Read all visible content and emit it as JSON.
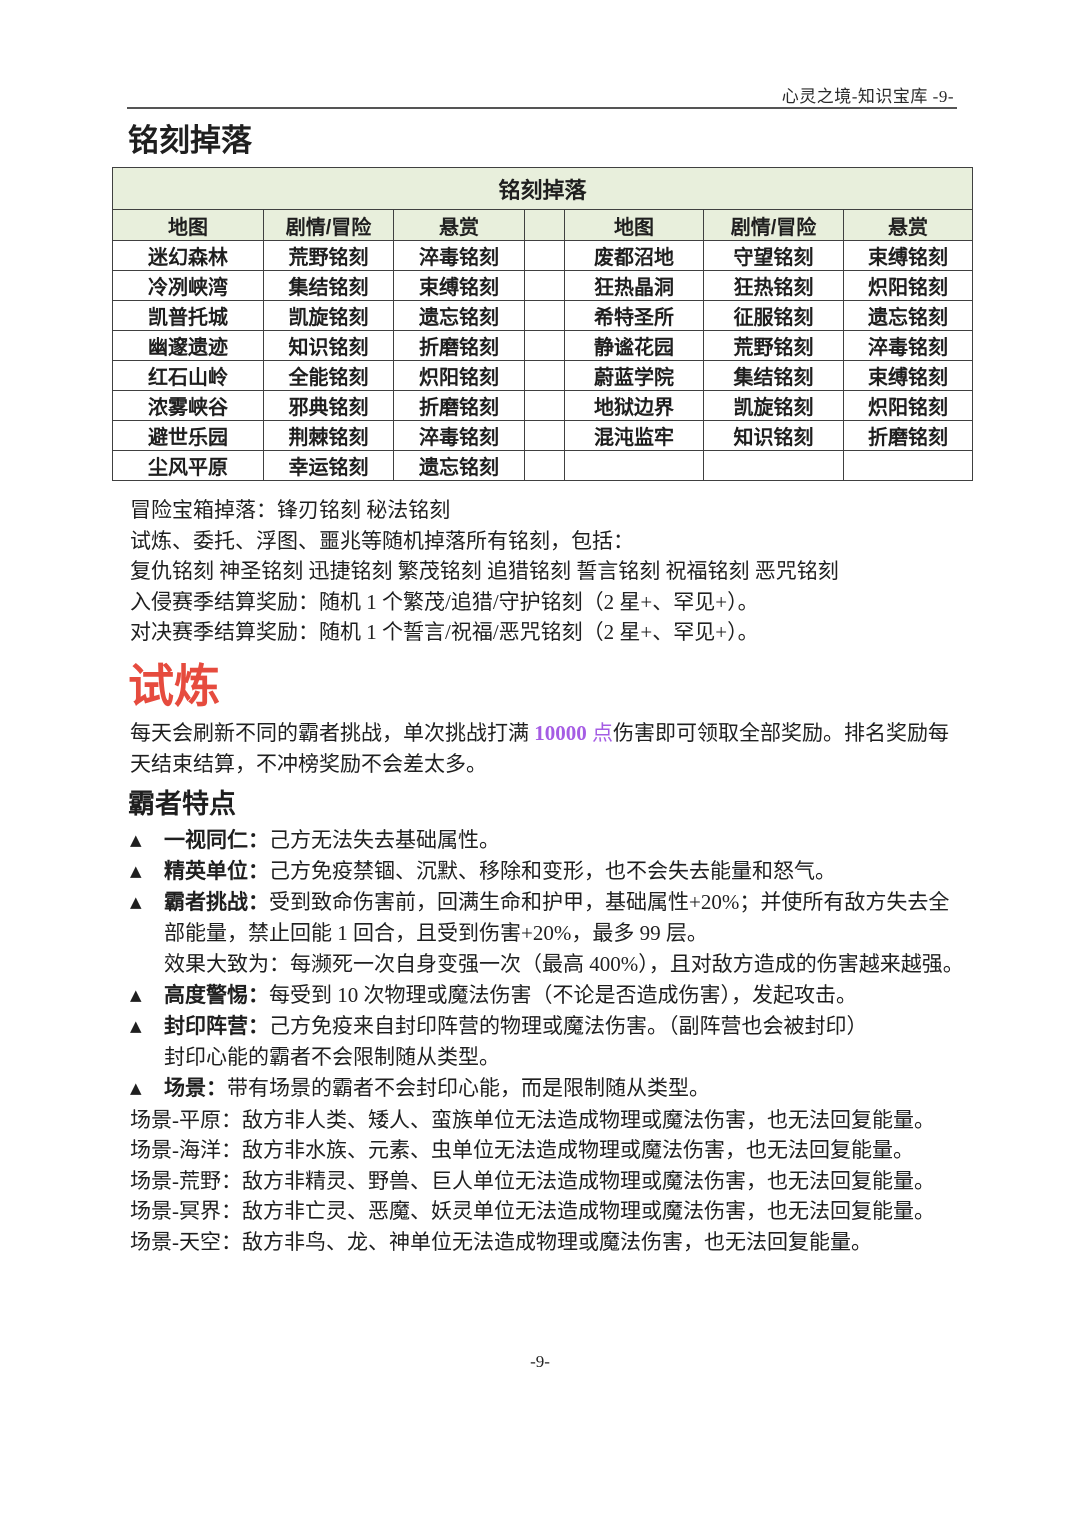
{
  "page": {
    "header_right": "心灵之境-知识宝库 -9-",
    "footer": "-9-"
  },
  "colors": {
    "accent_red": "#e64b3e",
    "highlight_purple": "#a55ce4",
    "table_header_bg": "#e8efdc",
    "table_border": "#404040"
  },
  "inscription_section": {
    "title": "铭刻掉落",
    "table": {
      "title": "铭刻掉落",
      "columns": [
        "地图",
        "剧情/冒险",
        "悬赏",
        "",
        "地图",
        "剧情/冒险",
        "悬赏"
      ],
      "rows": [
        [
          "迷幻森林",
          "荒野铭刻",
          "淬毒铭刻",
          "",
          "废都沼地",
          "守望铭刻",
          "束缚铭刻"
        ],
        [
          "冷冽峡湾",
          "集结铭刻",
          "束缚铭刻",
          "",
          "狂热晶洞",
          "狂热铭刻",
          "炽阳铭刻"
        ],
        [
          "凯普托城",
          "凯旋铭刻",
          "遗忘铭刻",
          "",
          "希特圣所",
          "征服铭刻",
          "遗忘铭刻"
        ],
        [
          "幽邃遗迹",
          "知识铭刻",
          "折磨铭刻",
          "",
          "静谧花园",
          "荒野铭刻",
          "淬毒铭刻"
        ],
        [
          "红石山岭",
          "全能铭刻",
          "炽阳铭刻",
          "",
          "蔚蓝学院",
          "集结铭刻",
          "束缚铭刻"
        ],
        [
          "浓雾峡谷",
          "邪典铭刻",
          "折磨铭刻",
          "",
          "地狱边界",
          "凯旋铭刻",
          "炽阳铭刻"
        ],
        [
          "避世乐园",
          "荆棘铭刻",
          "淬毒铭刻",
          "",
          "混沌监牢",
          "知识铭刻",
          "折磨铭刻"
        ],
        [
          "尘风平原",
          "幸运铭刻",
          "遗忘铭刻",
          "",
          "",
          "",
          ""
        ]
      ]
    },
    "notes": [
      "冒险宝箱掉落：锋刃铭刻 秘法铭刻",
      "试炼、委托、浮图、噩兆等随机掉落所有铭刻，包括：",
      "复仇铭刻 神圣铭刻 迅捷铭刻 繁茂铭刻 追猎铭刻 誓言铭刻 祝福铭刻 恶咒铭刻",
      "入侵赛季结算奖励：随机 1 个繁茂/追猎/守护铭刻（2 星+、罕见+）。",
      "对决赛季结算奖励：随机 1 个誓言/祝福/恶咒铭刻（2 星+、罕见+）。"
    ]
  },
  "trial_section": {
    "title": "试炼",
    "intro": {
      "before": "每天会刷新不同的霸者挑战，单次挑战打满 ",
      "highlight_num": "10000",
      "highlight_unit": " 点",
      "after": "伤害即可领取全部奖励。排名奖励每天结束结算，不冲榜奖励不会差太多。"
    },
    "subtitle": "霸者特点",
    "bullet_marker": "▲",
    "bullets": [
      {
        "label": "一视同仁：",
        "text": "己方无法失去基础属性。",
        "extra": []
      },
      {
        "label": "精英单位：",
        "text": "己方免疫禁锢、沉默、移除和变形，也不会失去能量和怒气。",
        "extra": []
      },
      {
        "label": "霸者挑战：",
        "text": "受到致命伤害前，回满生命和护甲，基础属性+20%；并使所有敌方失去全部能量，禁止回能 1 回合，且受到伤害+20%，最多 99 层。",
        "extra": [
          "效果大致为：每濒死一次自身变强一次（最高 400%），且对敌方造成的伤害越来越强。"
        ]
      },
      {
        "label": "高度警惕：",
        "text": "每受到 10 次物理或魔法伤害（不论是否造成伤害），发起攻击。",
        "extra": []
      },
      {
        "label": "封印阵营：",
        "text": "己方免疫来自封印阵营的物理或魔法伤害。（副阵营也会被封印）",
        "extra": [
          "封印心能的霸者不会限制随从类型。"
        ]
      },
      {
        "label": "场景：",
        "text": "带有场景的霸者不会封印心能，而是限制随从类型。",
        "extra": []
      }
    ],
    "scene_lines": [
      "场景-平原：敌方非人类、矮人、蛮族单位无法造成物理或魔法伤害，也无法回复能量。",
      "场景-海洋：敌方非水族、元素、虫单位无法造成物理或魔法伤害，也无法回复能量。",
      "场景-荒野：敌方非精灵、野兽、巨人单位无法造成物理或魔法伤害，也无法回复能量。",
      "场景-冥界：敌方非亡灵、恶魔、妖灵单位无法造成物理或魔法伤害，也无法回复能量。",
      "场景-天空：敌方非鸟、龙、神单位无法造成物理或魔法伤害，也无法回复能量。"
    ]
  }
}
